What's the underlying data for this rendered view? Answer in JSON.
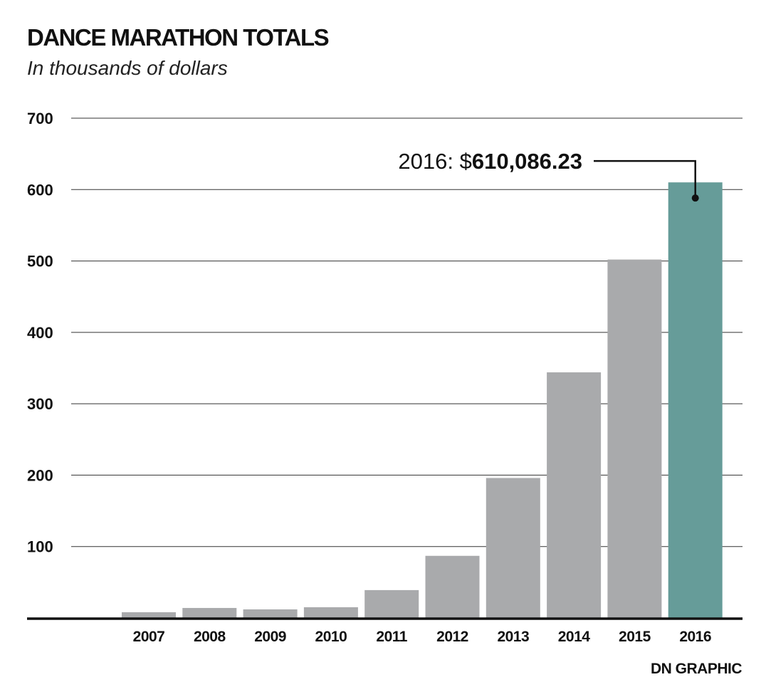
{
  "chart_data": {
    "type": "bar",
    "title": "DANCE MARATHON TOTALS",
    "subtitle": "In thousands of dollars",
    "xlabel": "",
    "ylabel": "",
    "categories": [
      "2007",
      "2008",
      "2009",
      "2010",
      "2011",
      "2012",
      "2013",
      "2014",
      "2015",
      "2016"
    ],
    "values": [
      8,
      14,
      12,
      15,
      39,
      87,
      196,
      344,
      502,
      610.086
    ],
    "ylim": [
      0,
      700
    ],
    "yticks": [
      100,
      200,
      300,
      400,
      500,
      600,
      700
    ],
    "grid": true,
    "colors": {
      "default": "#a9aaac",
      "highlight": "#669c99"
    },
    "highlight_index": 9,
    "annotation": {
      "prefix": "2016: $",
      "value": "610,086.23",
      "target_index": 9
    },
    "credit": "DN GRAPHIC"
  }
}
